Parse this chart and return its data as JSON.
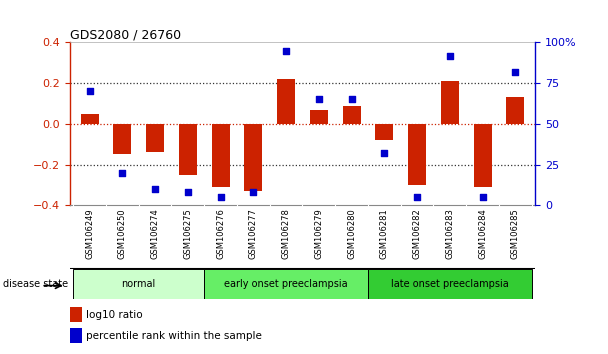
{
  "title": "GDS2080 / 26760",
  "samples": [
    "GSM106249",
    "GSM106250",
    "GSM106274",
    "GSM106275",
    "GSM106276",
    "GSM106277",
    "GSM106278",
    "GSM106279",
    "GSM106280",
    "GSM106281",
    "GSM106282",
    "GSM106283",
    "GSM106284",
    "GSM106285"
  ],
  "log10_ratio": [
    0.05,
    -0.15,
    -0.14,
    -0.25,
    -0.31,
    -0.33,
    0.22,
    0.07,
    0.09,
    -0.08,
    -0.3,
    0.21,
    -0.31,
    0.13
  ],
  "percentile_rank": [
    70,
    20,
    10,
    8,
    5,
    8,
    95,
    65,
    65,
    32,
    5,
    92,
    5,
    82
  ],
  "groups": [
    {
      "label": "normal",
      "start": 0,
      "end": 4,
      "color": "#ccffcc"
    },
    {
      "label": "early onset preeclampsia",
      "start": 4,
      "end": 9,
      "color": "#66ee66"
    },
    {
      "label": "late onset preeclampsia",
      "start": 9,
      "end": 14,
      "color": "#33cc33"
    }
  ],
  "ylim_left": [
    -0.4,
    0.4
  ],
  "ylim_right": [
    0,
    100
  ],
  "yticks_left": [
    -0.4,
    -0.2,
    0.0,
    0.2,
    0.4
  ],
  "yticks_right": [
    0,
    25,
    50,
    75,
    100
  ],
  "ytick_labels_right": [
    "0",
    "25",
    "50",
    "75",
    "100%"
  ],
  "bar_color": "#cc2200",
  "scatter_color": "#0000cc",
  "zero_line_color": "#cc2200",
  "dotted_line_color": "#333333",
  "bg_color": "#ffffff",
  "sample_band_color": "#cccccc",
  "legend_items": [
    "log10 ratio",
    "percentile rank within the sample"
  ],
  "disease_state_label": "disease state"
}
